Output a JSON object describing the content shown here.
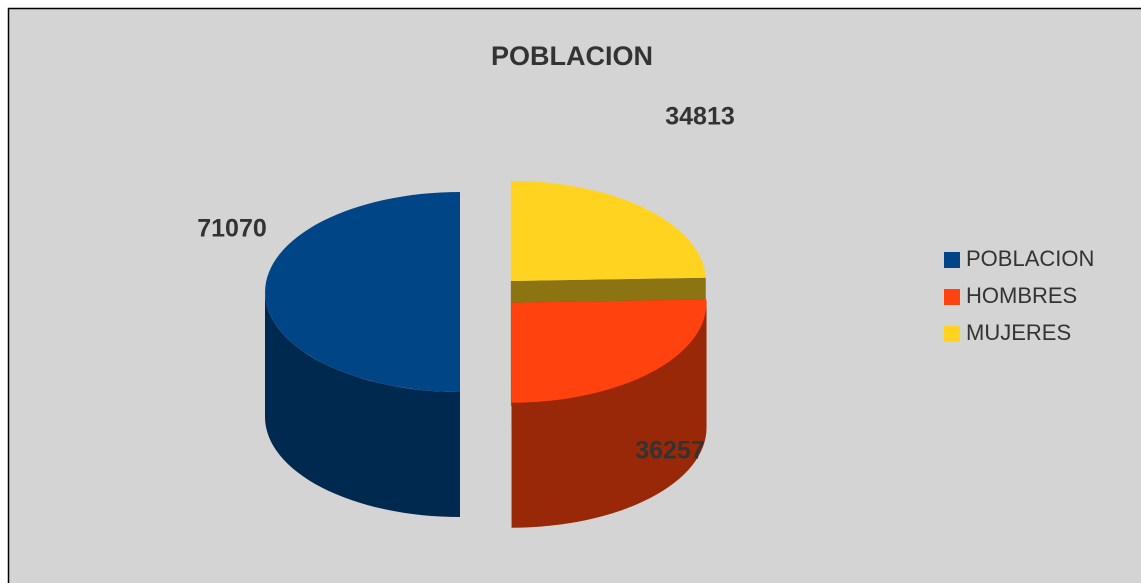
{
  "chart_data": {
    "type": "pie",
    "title": "POBLACION",
    "categories": [
      "POBLACION",
      "HOMBRES",
      "MUJERES"
    ],
    "values": [
      71070,
      36257,
      34813
    ],
    "colors": [
      "#004586",
      "#ff420e",
      "#ffd320"
    ],
    "legend": "right"
  }
}
